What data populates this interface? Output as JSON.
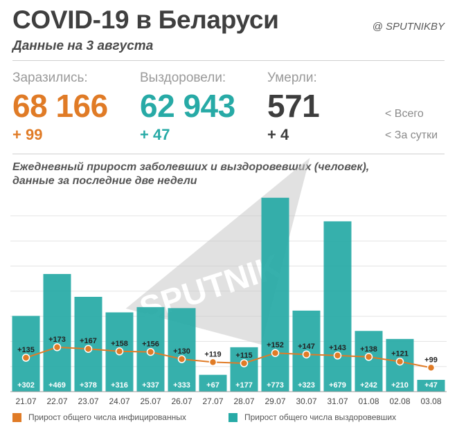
{
  "header": {
    "title": "COVID-19 в Беларуси",
    "handle": "@ SPUTNIKBY",
    "subtitle": "Данные на 3 августа"
  },
  "stats": [
    {
      "label": "Заразились:",
      "value": "68 166",
      "delta": "+ 99",
      "color": "#e07b26"
    },
    {
      "label": "Выздоровели:",
      "value": "62 943",
      "delta": "+ 47",
      "color": "#27aaa6"
    },
    {
      "label": "Умерли:",
      "value": "571",
      "delta": "+ 4",
      "color": "#3d3d3d"
    }
  ],
  "hints": {
    "total": "<  Всего",
    "daily": "<  За сутки"
  },
  "chart_title_line1": "Ежедневный прирост заболевших и выздоровевших (человек),",
  "chart_title_line2": "данные за последние две недели",
  "watermark": "SPUTNIK",
  "legend": {
    "infected": "Прирост общего числа инфицированных",
    "recovered": "Прирост общего числа выздоровевших"
  },
  "colors": {
    "infected": "#e07b26",
    "recovered": "#27aaa6",
    "grid": "#e3e3e3"
  },
  "chart_data": {
    "type": "bar",
    "categories": [
      "21.07",
      "22.07",
      "23.07",
      "24.07",
      "25.07",
      "26.07",
      "27.07",
      "28.07",
      "29.07",
      "30.07",
      "31.07",
      "01.08",
      "02.08",
      "03.08"
    ],
    "series": [
      {
        "name": "Прирост общего числа выздоровевших",
        "type": "bar",
        "values": [
          302,
          469,
          378,
          316,
          337,
          333,
          67,
          177,
          773,
          323,
          679,
          242,
          210,
          47
        ],
        "labels": [
          "+302",
          "+469",
          "+378",
          "+316",
          "+337",
          "+333",
          "+67",
          "+177",
          "+773",
          "+323",
          "+679",
          "+242",
          "+210",
          "+47"
        ]
      },
      {
        "name": "Прирост общего числа инфицированных",
        "type": "line",
        "values": [
          135,
          173,
          167,
          158,
          156,
          130,
          119,
          115,
          152,
          147,
          143,
          138,
          121,
          99
        ],
        "labels": [
          "+135",
          "+173",
          "+167",
          "+158",
          "+156",
          "+130",
          "+119",
          "+115",
          "+152",
          "+147",
          "+143",
          "+138",
          "+121",
          "+99"
        ]
      }
    ],
    "ylim": [
      0,
      800
    ],
    "grid": true
  }
}
